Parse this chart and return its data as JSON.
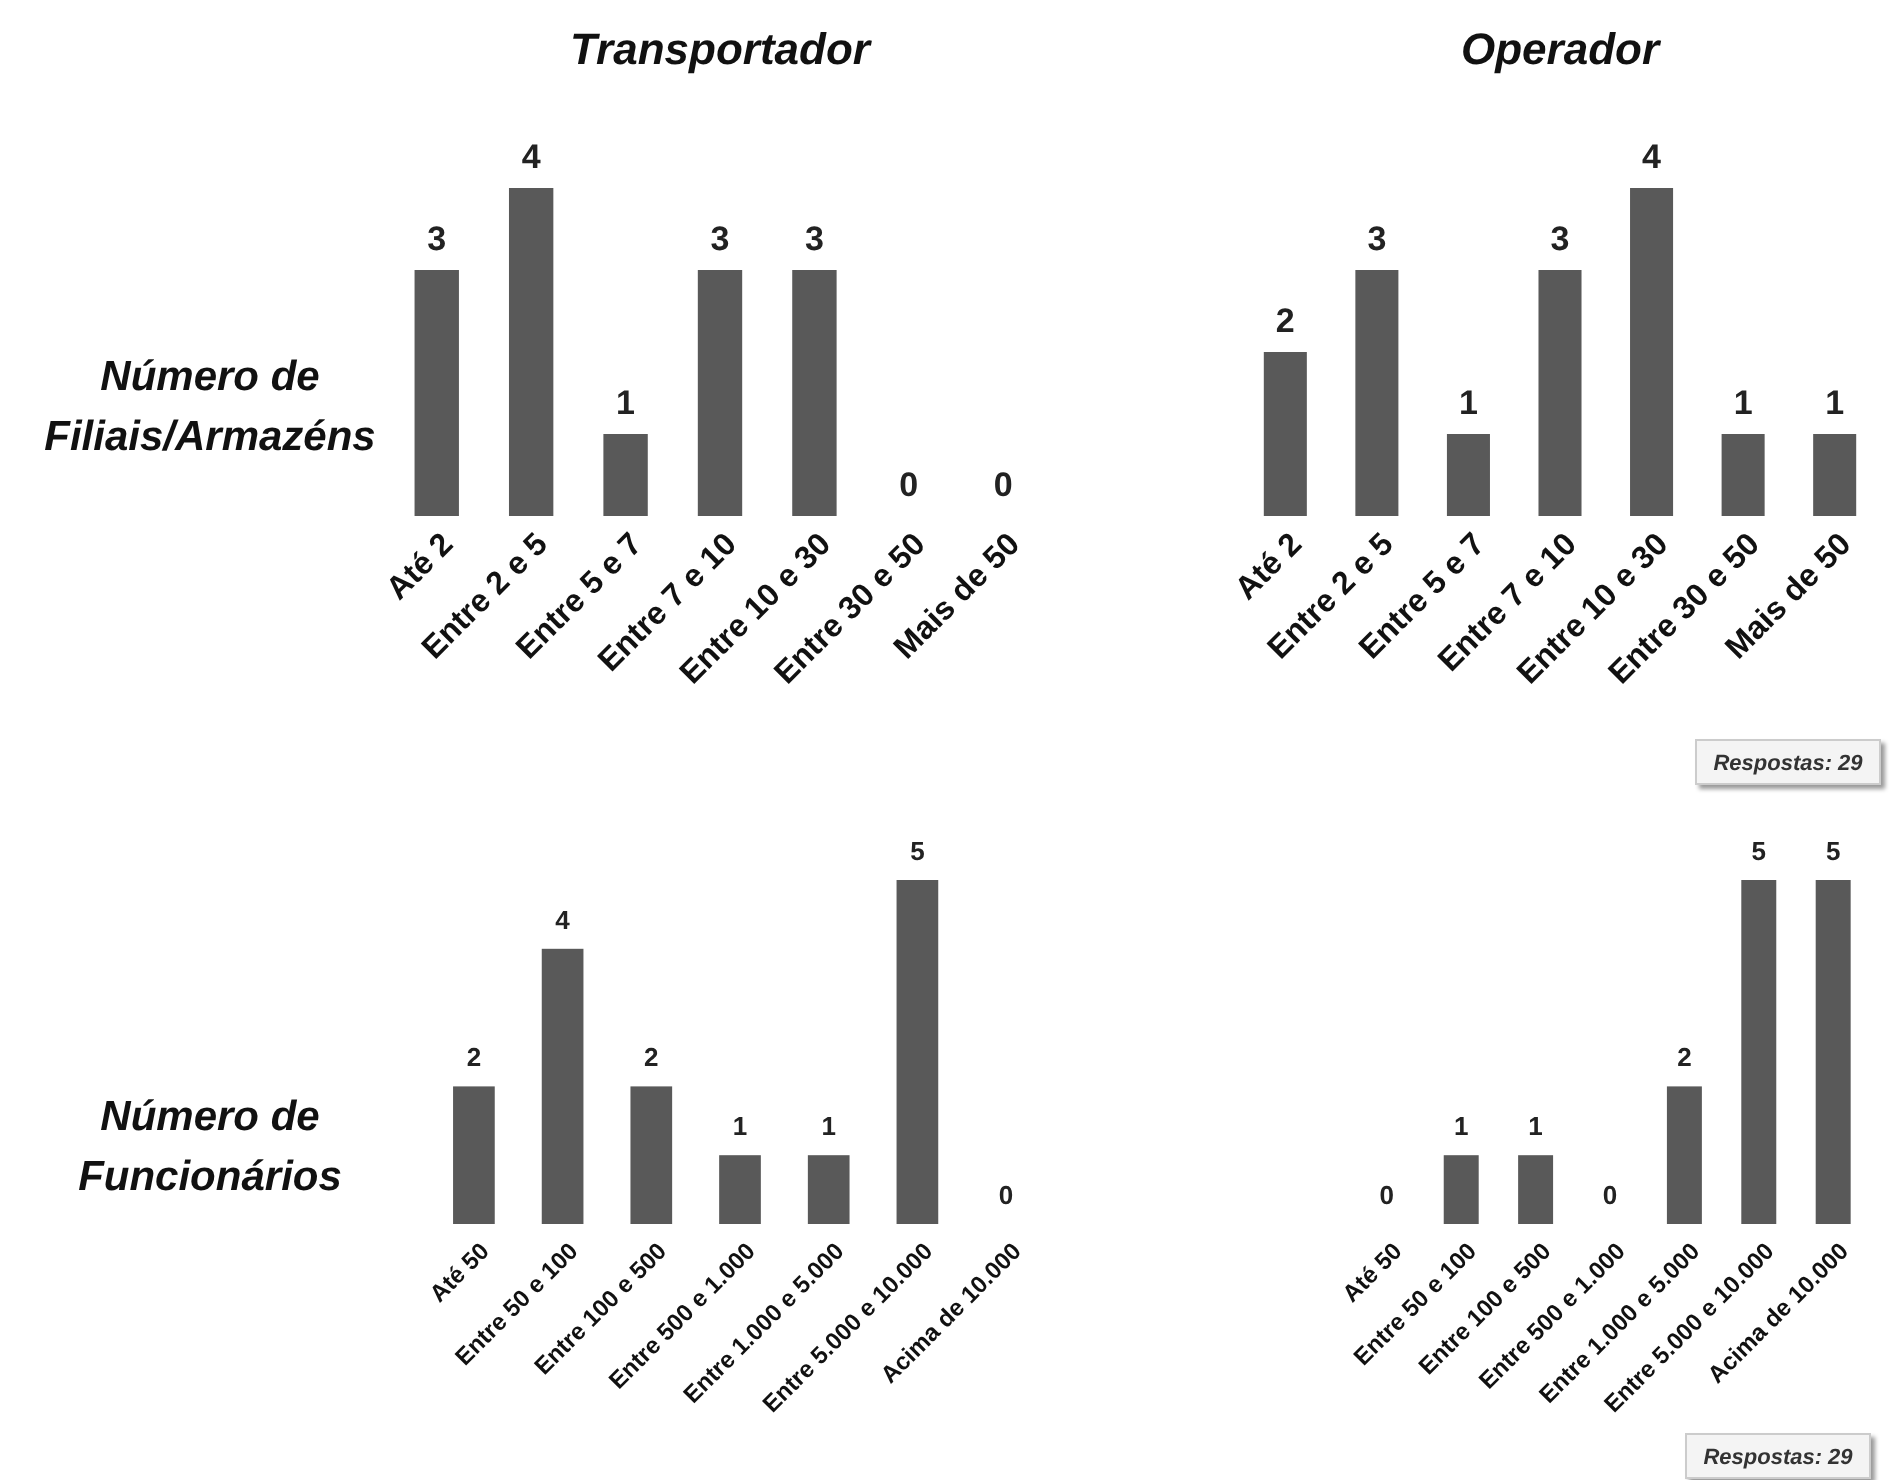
{
  "chart_data": [
    {
      "type": "bar",
      "title": "Transportador",
      "ylabel": "Número de Filiais/Armazéns",
      "categories": [
        "Até 2",
        "Entre 2 e 5",
        "Entre 5 e 7",
        "Entre 7 e 10",
        "Entre 10 e 30",
        "Entre 30 e 50",
        "Mais de 50"
      ],
      "values": [
        3,
        4,
        1,
        3,
        3,
        0,
        0
      ],
      "color": "#595959",
      "data_labels": true
    },
    {
      "type": "bar",
      "title": "Operador",
      "categories": [
        "Até 2",
        "Entre 2 e 5",
        "Entre 5 e 7",
        "Entre 7 e 10",
        "Entre 10 e 30",
        "Entre 30 e 50",
        "Mais de 50"
      ],
      "values": [
        2,
        3,
        1,
        3,
        4,
        1,
        1
      ],
      "color": "#595959",
      "data_labels": true,
      "annotations": [
        "Respostas: 29"
      ]
    },
    {
      "type": "bar",
      "ylabel": "Número de Funcionários",
      "categories": [
        "Até 50",
        "Entre 50 e 100",
        "Entre 100 e 500",
        "Entre 500 e 1.000",
        "Entre 1.000 e 5.000",
        "Entre 5.000 e 10.000",
        "Acima de 10.000"
      ],
      "values": [
        2,
        4,
        2,
        1,
        1,
        5,
        0
      ],
      "color": "#595959",
      "data_labels": true
    },
    {
      "type": "bar",
      "categories": [
        "Até 50",
        "Entre 50 e 100",
        "Entre 100 e 500",
        "Entre 500 e 1.000",
        "Entre 1.000 e 5.000",
        "Entre 5.000 e 10.000",
        "Acima de 10.000"
      ],
      "values": [
        0,
        1,
        1,
        0,
        2,
        5,
        5
      ],
      "color": "#595959",
      "data_labels": true,
      "annotations": [
        "Respostas: 29"
      ]
    }
  ]
}
